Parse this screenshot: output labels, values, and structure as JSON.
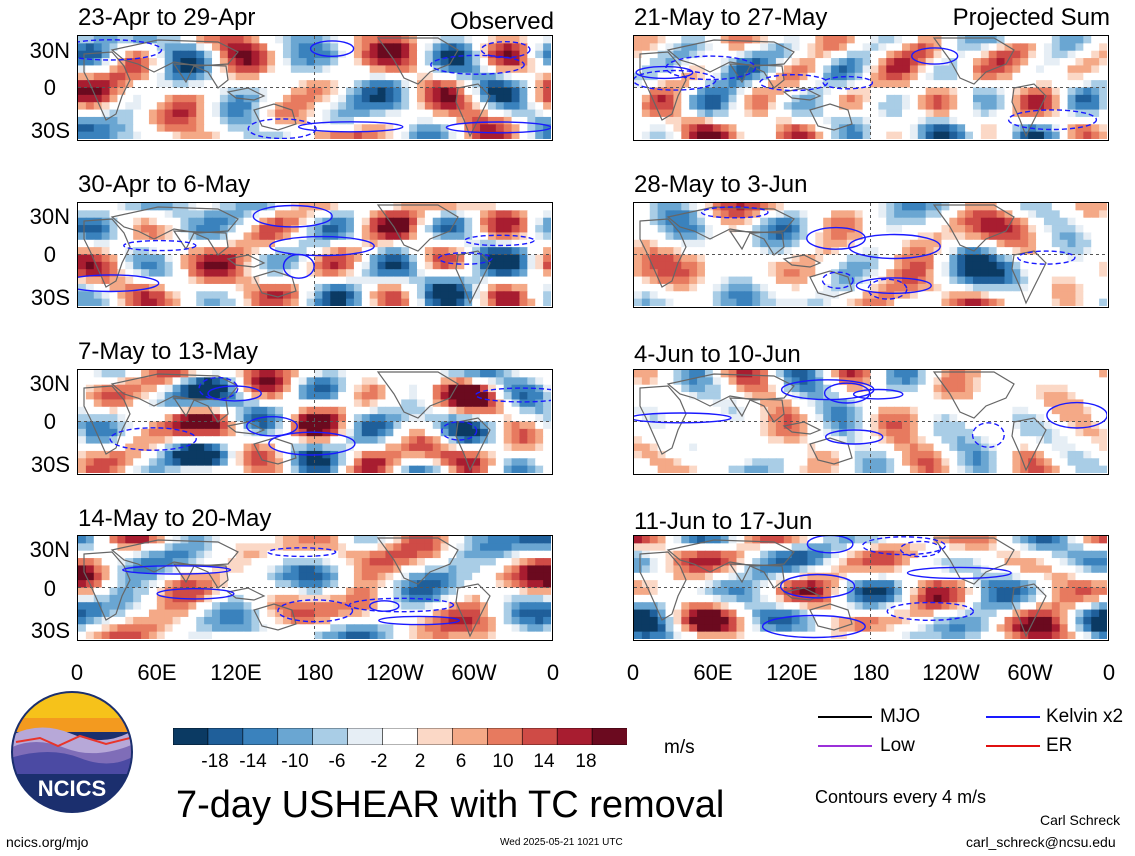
{
  "header": {
    "left_label": "Observed",
    "right_label": "Projected Sum"
  },
  "panels": [
    {
      "title": "23-Apr to 29-Apr"
    },
    {
      "title": "30-Apr to 6-May"
    },
    {
      "title": "7-May to 13-May"
    },
    {
      "title": "14-May to 20-May"
    },
    {
      "title": "21-May to 27-May"
    },
    {
      "title": "28-May to 3-Jun"
    },
    {
      "title": "4-Jun to 10-Jun"
    },
    {
      "title": "11-Jun to 17-Jun"
    }
  ],
  "lat_labels": [
    "30N",
    "0",
    "30S"
  ],
  "lon_labels": [
    "0",
    "60E",
    "120E",
    "180",
    "120W",
    "60W",
    "0"
  ],
  "colorbar": {
    "unit": "m/s",
    "ticks": [
      "-18",
      "-14",
      "-10",
      "-6",
      "-2",
      "2",
      "6",
      "10",
      "14",
      "18"
    ],
    "colors": [
      "#0b3a63",
      "#1f5f9a",
      "#3a82bd",
      "#6aa6d2",
      "#a9cde6",
      "#e6eef5",
      "#ffffff",
      "#fbd8c6",
      "#f4a987",
      "#e77a5f",
      "#cf4b46",
      "#a81d30",
      "#6b0a1f"
    ]
  },
  "legend": {
    "items": [
      {
        "label": "MJO",
        "color": "#000000"
      },
      {
        "label": "Kelvin x2",
        "color": "#1a1aff"
      },
      {
        "label": "Low",
        "color": "#9b30d9"
      },
      {
        "label": "ER",
        "color": "#e01010"
      }
    ],
    "note": "Contours every 4 m/s"
  },
  "logo": {
    "text": "NCICS"
  },
  "main_title": "7-day USHEAR with TC removal",
  "footer": {
    "url": "ncics.org/mjo",
    "timestamp": "Wed 2025-05-21 1021 UTC",
    "author": "Carl Schreck",
    "email": "carl_schreck@ncsu.edu"
  }
}
